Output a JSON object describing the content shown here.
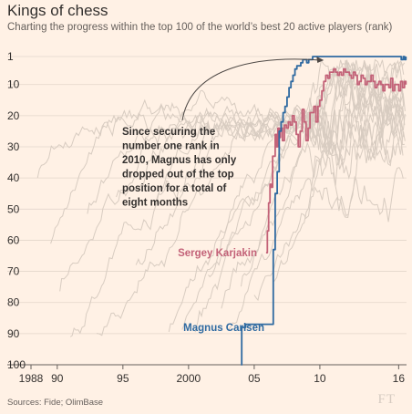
{
  "header": {
    "title": "Kings of chess",
    "subtitle": "Charting the progress within the top 100 of the world’s best 20 active players (rank)"
  },
  "footer": {
    "source": "Sources: Fide; OlimBase",
    "logo": "FT"
  },
  "chart_data": {
    "type": "line",
    "title": "Kings of chess",
    "subtitle": "Charting the progress within the top 100 of the world’s best 20 active players (rank)",
    "xlabel": "",
    "ylabel": "",
    "xlim": [
      1988,
      2016.6
    ],
    "ylim": [
      100,
      1
    ],
    "y_reversed": true,
    "y_ticks": [
      1,
      10,
      20,
      30,
      40,
      50,
      60,
      70,
      80,
      90,
      100
    ],
    "x_ticks": [
      {
        "value": 1988,
        "label": "1988"
      },
      {
        "value": 1990,
        "label": "90"
      },
      {
        "value": 1995,
        "label": "95"
      },
      {
        "value": 2000,
        "label": "2000"
      },
      {
        "value": 2005,
        "label": "05"
      },
      {
        "value": 2010,
        "label": "10"
      },
      {
        "value": 2016,
        "label": "16"
      }
    ],
    "grid": "horizontal",
    "colors": {
      "background": "#fff1e5",
      "grid": "#e3d6cb",
      "other_players": "#d8ccc1",
      "carlsen": "#2f6aa1",
      "karjakin": "#c36278"
    },
    "highlighted_series": [
      {
        "name": "Magnus Carlsen",
        "x": [
          2004.0,
          2004.05,
          2004.2,
          2004.35,
          2004.5,
          2004.65,
          2004.8,
          2004.95,
          2005.1,
          2005.25,
          2005.4,
          2005.55,
          2005.7,
          2005.85,
          2006.0,
          2006.15,
          2006.3,
          2006.45,
          2006.6,
          2006.75,
          2006.9,
          2007.05,
          2007.2,
          2007.35,
          2007.5,
          2007.65,
          2007.8,
          2007.95,
          2008.1,
          2008.25,
          2008.4,
          2008.55,
          2008.7,
          2008.85,
          2009.0,
          2009.15,
          2009.3,
          2009.45,
          2009.6,
          2009.75,
          2009.9,
          2010.05,
          2010.2,
          2010.5,
          2010.8,
          2011.1,
          2011.4,
          2011.7,
          2012.0,
          2012.3,
          2012.6,
          2012.9,
          2013.2,
          2013.5,
          2013.8,
          2014.1,
          2014.4,
          2014.7,
          2015.0,
          2015.3,
          2015.6,
          2015.9,
          2016.1,
          2016.2,
          2016.35,
          2016.45,
          2016.55
        ],
        "y": [
          100,
          88,
          88,
          87,
          87,
          87,
          87,
          87,
          87,
          87,
          87,
          87,
          87,
          87,
          87,
          87,
          87,
          63,
          45,
          38,
          25,
          22,
          19,
          17,
          14,
          11,
          9,
          7,
          5,
          4,
          4,
          3,
          2,
          2,
          3,
          2,
          2,
          1,
          1,
          1,
          1,
          1,
          1,
          1,
          1,
          1,
          1,
          1,
          1,
          1,
          1,
          1,
          1,
          1,
          1,
          1,
          1,
          1,
          1,
          1,
          1,
          1,
          1,
          2,
          1,
          2,
          1
        ]
      },
      {
        "name": "Sergey Karjakin",
        "x": [
          2005.9,
          2006.0,
          2006.1,
          2006.2,
          2006.3,
          2006.4,
          2006.5,
          2006.6,
          2006.7,
          2006.8,
          2006.9,
          2007.0,
          2007.15,
          2007.3,
          2007.45,
          2007.6,
          2007.75,
          2007.9,
          2008.05,
          2008.2,
          2008.35,
          2008.5,
          2008.65,
          2008.8,
          2008.95,
          2009.1,
          2009.25,
          2009.4,
          2009.55,
          2009.7,
          2009.85,
          2010.0,
          2010.15,
          2010.3,
          2010.45,
          2010.6,
          2010.75,
          2010.9,
          2011.05,
          2011.2,
          2011.35,
          2011.5,
          2011.65,
          2011.8,
          2011.95,
          2012.1,
          2012.25,
          2012.4,
          2012.55,
          2012.7,
          2012.85,
          2013.0,
          2013.15,
          2013.3,
          2013.45,
          2013.6,
          2013.75,
          2013.9,
          2014.05,
          2014.2,
          2014.35,
          2014.5,
          2014.65,
          2014.8,
          2014.95,
          2015.1,
          2015.25,
          2015.4,
          2015.55,
          2015.7,
          2015.85,
          2016.0,
          2016.15,
          2016.3,
          2016.45,
          2016.55
        ],
        "y": [
          64,
          57,
          48,
          42,
          43,
          33,
          33,
          26,
          30,
          24,
          27,
          24,
          28,
          23,
          24,
          22,
          23,
          20,
          22,
          26,
          30,
          25,
          18,
          22,
          28,
          24,
          19,
          19,
          17,
          22,
          17,
          15,
          12,
          9,
          7,
          8,
          6,
          6,
          5,
          6,
          7,
          6,
          7,
          5,
          6,
          6,
          7,
          8,
          6,
          7,
          10,
          9,
          7,
          8,
          10,
          9,
          9,
          7,
          9,
          11,
          10,
          9,
          10,
          12,
          10,
          10,
          11,
          8,
          12,
          10,
          10,
          12,
          9,
          11,
          9,
          10
        ]
      }
    ],
    "labels": {
      "karjakin": "Sergey Karjakin",
      "carlsen": "Magnus Carlsen"
    },
    "annotation": {
      "lines": [
        "Since securing the",
        "number one rank in",
        "2010, Magnus has only",
        "dropped out of the top",
        "position for a total of",
        "eight months"
      ],
      "arrow_target": {
        "x": 2010.3,
        "y": 1
      }
    }
  }
}
